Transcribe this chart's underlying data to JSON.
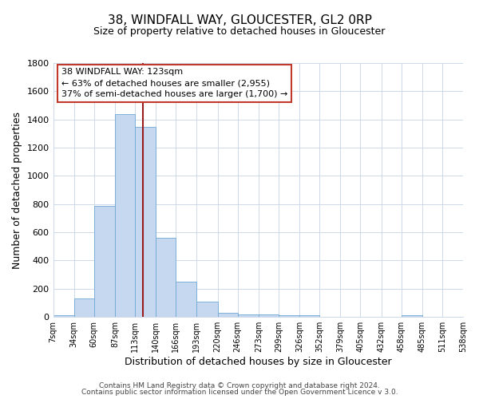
{
  "title": "38, WINDFALL WAY, GLOUCESTER, GL2 0RP",
  "subtitle": "Size of property relative to detached houses in Gloucester",
  "xlabel": "Distribution of detached houses by size in Gloucester",
  "ylabel": "Number of detached properties",
  "bar_color": "#c5d8f0",
  "bar_edge_color": "#6fa8d4",
  "highlight_color": "#9b1c1c",
  "bin_edges": [
    7,
    34,
    60,
    87,
    113,
    140,
    166,
    193,
    220,
    246,
    273,
    299,
    326,
    352,
    379,
    405,
    432,
    458,
    485,
    511,
    538
  ],
  "bar_heights": [
    10,
    130,
    790,
    1440,
    1350,
    560,
    250,
    110,
    30,
    20,
    20,
    10,
    10,
    0,
    0,
    0,
    0,
    10,
    0,
    0
  ],
  "vline_x": 123,
  "ylim": [
    0,
    1800
  ],
  "yticks": [
    0,
    200,
    400,
    600,
    800,
    1000,
    1200,
    1400,
    1600,
    1800
  ],
  "tick_labels": [
    "7sqm",
    "34sqm",
    "60sqm",
    "87sqm",
    "113sqm",
    "140sqm",
    "166sqm",
    "193sqm",
    "220sqm",
    "246sqm",
    "273sqm",
    "299sqm",
    "326sqm",
    "352sqm",
    "379sqm",
    "405sqm",
    "432sqm",
    "458sqm",
    "485sqm",
    "511sqm",
    "538sqm"
  ],
  "annotation_title": "38 WINDFALL WAY: 123sqm",
  "annotation_line1": "← 63% of detached houses are smaller (2,955)",
  "annotation_line2": "37% of semi-detached houses are larger (1,700) →",
  "footer1": "Contains HM Land Registry data © Crown copyright and database right 2024.",
  "footer2": "Contains public sector information licensed under the Open Government Licence v 3.0.",
  "background_color": "#ffffff",
  "grid_color": "#cdd8ea",
  "annotation_box_color": "#ffffff",
  "annotation_box_edge": "#c0392b",
  "title_fontsize": 11,
  "subtitle_fontsize": 9,
  "xlabel_fontsize": 9,
  "ylabel_fontsize": 9,
  "tick_fontsize": 7,
  "ytick_fontsize": 8,
  "ann_title_fontsize": 9,
  "ann_text_fontsize": 8
}
